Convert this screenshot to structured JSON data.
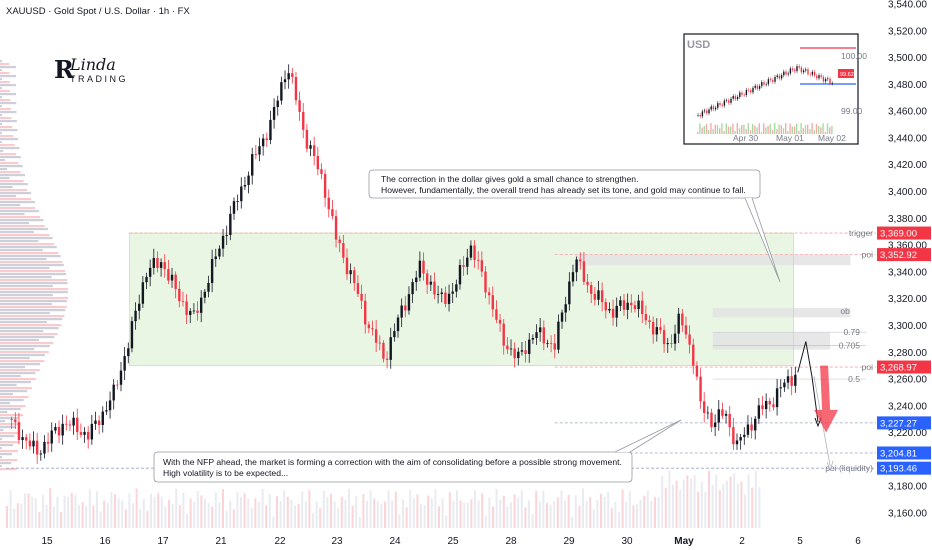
{
  "header": {
    "symbol_line": "XAUUSD · Gold Spot / U.S. Dollar · 1h · FX"
  },
  "logo": {
    "mark": "R",
    "name": "Linda",
    "sub": "TRADING"
  },
  "chart_data": {
    "type": "candlestick",
    "title": "XAUUSD · Gold Spot / U.S. Dollar · 1h · FX",
    "y_axis": {
      "range": [
        3150,
        3540
      ],
      "ticks": [
        "3,540.00",
        "3,520.00",
        "3,500.00",
        "3,480.00",
        "3,460.00",
        "3,440.00",
        "3,420.00",
        "3,400.00",
        "3,380.00",
        "3,360.00",
        "3,340.00",
        "3,320.00",
        "3,300.00",
        "3,280.00",
        "3,260.00",
        "3,240.00",
        "3,220.00",
        "3,180.00",
        "3,160.00"
      ]
    },
    "x_axis": {
      "ticks": [
        "15",
        "16",
        "17",
        "21",
        "22",
        "23",
        "24",
        "25",
        "28",
        "29",
        "30",
        "May",
        "2",
        "5",
        "6"
      ]
    },
    "price_path": [
      {
        "x": 0.0,
        "y": 3230
      },
      {
        "x": 0.7,
        "y": 3205
      },
      {
        "x": 1.4,
        "y": 3228
      },
      {
        "x": 2.0,
        "y": 3218
      },
      {
        "x": 2.6,
        "y": 3248
      },
      {
        "x": 3.0,
        "y": 3290
      },
      {
        "x": 3.4,
        "y": 3340
      },
      {
        "x": 3.8,
        "y": 3348
      },
      {
        "x": 4.2,
        "y": 3322
      },
      {
        "x": 4.6,
        "y": 3305
      },
      {
        "x": 5.0,
        "y": 3340
      },
      {
        "x": 5.5,
        "y": 3382
      },
      {
        "x": 6.0,
        "y": 3420
      },
      {
        "x": 6.5,
        "y": 3452
      },
      {
        "x": 6.9,
        "y": 3495
      },
      {
        "x": 7.3,
        "y": 3445
      },
      {
        "x": 7.8,
        "y": 3405
      },
      {
        "x": 8.1,
        "y": 3365
      },
      {
        "x": 8.5,
        "y": 3335
      },
      {
        "x": 8.9,
        "y": 3300
      },
      {
        "x": 9.3,
        "y": 3275
      },
      {
        "x": 9.7,
        "y": 3310
      },
      {
        "x": 10.2,
        "y": 3345
      },
      {
        "x": 10.6,
        "y": 3320
      },
      {
        "x": 11.0,
        "y": 3325
      },
      {
        "x": 11.4,
        "y": 3360
      },
      {
        "x": 11.8,
        "y": 3330
      },
      {
        "x": 12.2,
        "y": 3290
      },
      {
        "x": 12.6,
        "y": 3275
      },
      {
        "x": 13.0,
        "y": 3295
      },
      {
        "x": 13.5,
        "y": 3285
      },
      {
        "x": 14.0,
        "y": 3350
      },
      {
        "x": 14.4,
        "y": 3325
      },
      {
        "x": 14.9,
        "y": 3310
      },
      {
        "x": 15.4,
        "y": 3318
      },
      {
        "x": 15.9,
        "y": 3300
      },
      {
        "x": 16.3,
        "y": 3285
      },
      {
        "x": 16.6,
        "y": 3305
      },
      {
        "x": 16.9,
        "y": 3280
      },
      {
        "x": 17.1,
        "y": 3240
      },
      {
        "x": 17.4,
        "y": 3228
      },
      {
        "x": 17.7,
        "y": 3235
      },
      {
        "x": 18.0,
        "y": 3210
      },
      {
        "x": 18.3,
        "y": 3225
      },
      {
        "x": 18.6,
        "y": 3238
      },
      {
        "x": 18.9,
        "y": 3245
      },
      {
        "x": 19.2,
        "y": 3258
      },
      {
        "x": 19.5,
        "y": 3265
      }
    ],
    "levels": [
      {
        "name": "trigger",
        "price": 3369.0,
        "price_label": "3,369.00",
        "tag_color": "#f23645"
      },
      {
        "name": "poi",
        "price": 3352.92,
        "price_label": "3,352.92",
        "tag_color": "#f23645"
      },
      {
        "name": "poi",
        "price": 3268.97,
        "price_label": "3,268.97",
        "tag_color": "#f23645"
      },
      {
        "name": "",
        "price": 3227.27,
        "price_label": "3,227.27",
        "tag_color": "#2962ff"
      },
      {
        "name": "",
        "price": 3204.81,
        "price_label": "3,204.81",
        "tag_color": "#2962ff"
      },
      {
        "name": "poi (liquidity)",
        "price": 3193.46,
        "price_label": "3,193.46",
        "tag_color": "#2962ff"
      }
    ],
    "fib_levels": [
      {
        "label": "0.79",
        "price": 3295
      },
      {
        "label": "0.705",
        "price": 3285
      },
      {
        "label": "0.5",
        "price": 3260
      }
    ],
    "zones": [
      {
        "label": "",
        "from_x": 3.0,
        "to_x": 19.4,
        "price_low": 3270,
        "price_high": 3369,
        "color": "#e6f4df"
      },
      {
        "label": "",
        "from_x": 14.0,
        "to_x": 20.8,
        "price_low": 3345,
        "price_high": 3353,
        "color": "#e3e3e3"
      },
      {
        "label": "ob",
        "from_x": 17.4,
        "to_x": 20.8,
        "price_low": 3306,
        "price_high": 3313,
        "color": "#e3e3e3"
      },
      {
        "label": "",
        "from_x": 17.4,
        "to_x": 20.3,
        "price_low": 3282,
        "price_high": 3295,
        "color": "#e3e3e3"
      }
    ],
    "projection": {
      "path": [
        {
          "x": 19.5,
          "y": 3265
        },
        {
          "x": 19.9,
          "y": 3225
        }
      ],
      "arrow_color": "#131722"
    },
    "big_arrow": {
      "x": 20.2,
      "from": 3270,
      "to": 3220,
      "color": "#f23645"
    },
    "annotations": [
      {
        "id": "dollar",
        "lines": [
          "The correction in the dollar gives gold a small chance to strengthen.",
          "However, fundamentally, the overall trend has already set its tone, and gold may continue to fall."
        ]
      },
      {
        "id": "nfp",
        "lines": [
          "With the NFP ahead, the market is forming a correction with the aim of consolidating before a possible strong movement.",
          "High volatility is to be expected..."
        ]
      }
    ],
    "inset": {
      "title": "USD",
      "y_ticks": [
        "100.00",
        "99.60",
        "99.00"
      ],
      "x_ticks": [
        "Apr 30",
        "May 01",
        "May 02"
      ],
      "price_tag": "99.62"
    }
  },
  "colors": {
    "bull": "#131722",
    "bear": "#f23645",
    "axis_bg": "#ffffff",
    "grid": "#f0f3fa"
  }
}
